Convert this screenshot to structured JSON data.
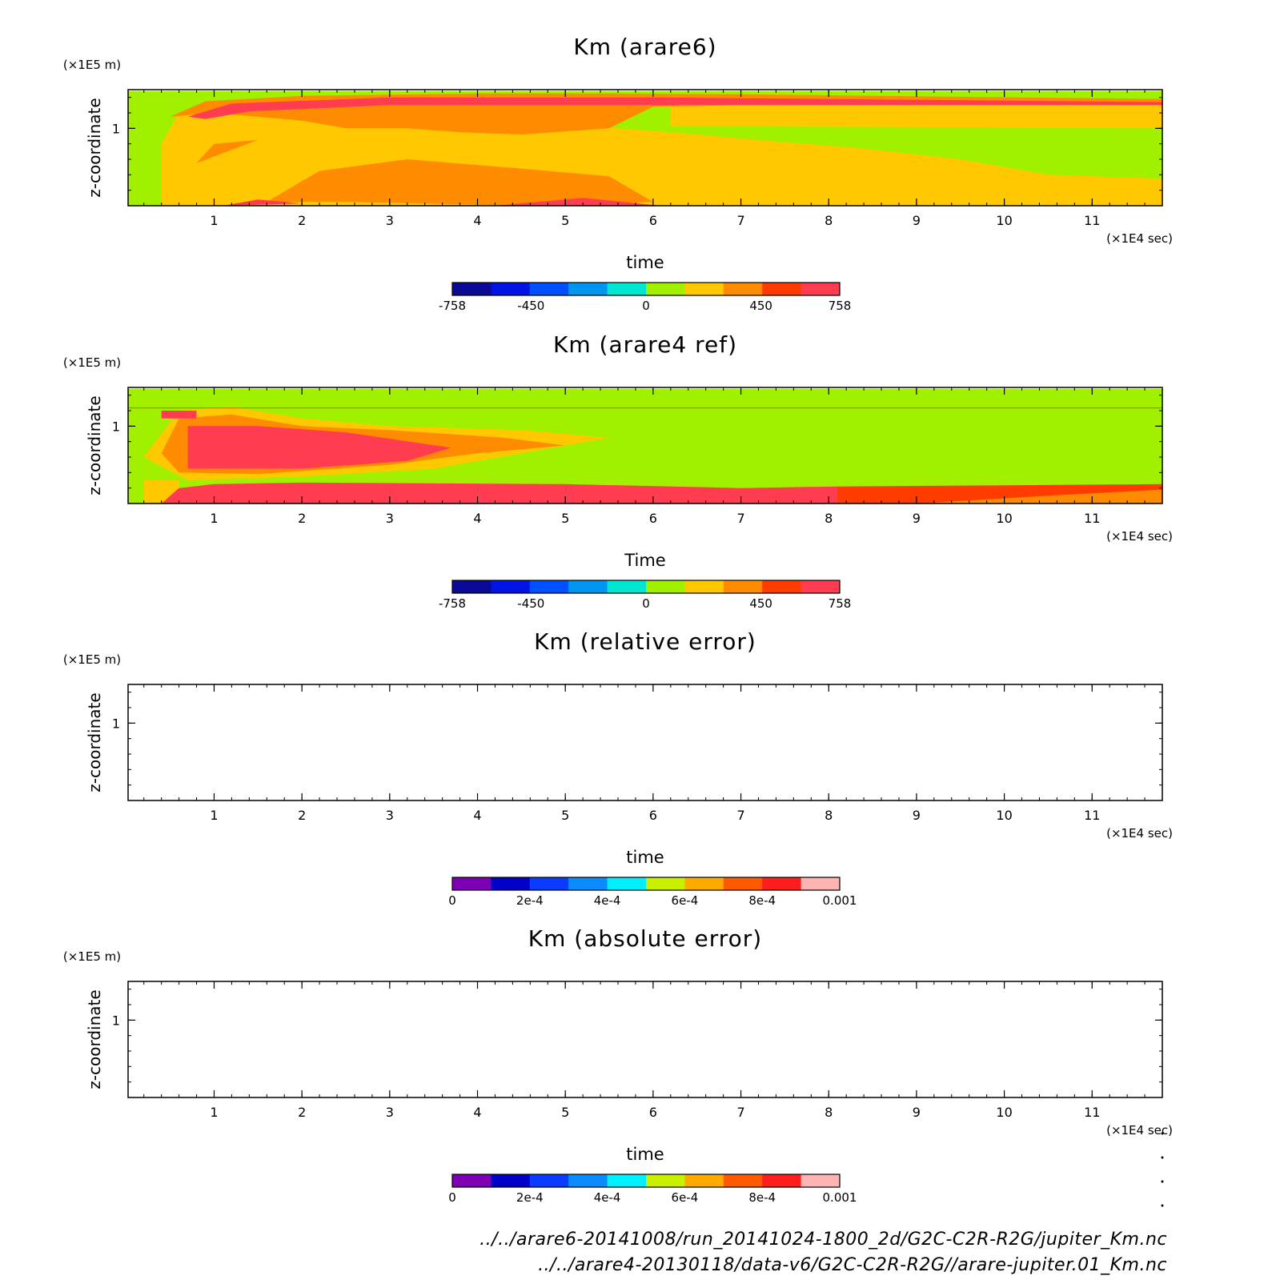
{
  "colorbars": {
    "km": {
      "colors": [
        "#0a0a96",
        "#0014e6",
        "#0050ff",
        "#0096f0",
        "#00e6d2",
        "#a0f000",
        "#ffc800",
        "#ff8c00",
        "#ff3c00",
        "#ff3c50"
      ],
      "labels": [
        "-758",
        "-450",
        "0",
        "450",
        "758"
      ],
      "label_values": [
        -758,
        -450,
        0,
        450,
        758
      ],
      "range": [
        -758,
        758
      ]
    },
    "err": {
      "colors": [
        "#7d00b4",
        "#0000c8",
        "#0a3cff",
        "#0a8cff",
        "#00f0ff",
        "#c8f000",
        "#ffaa00",
        "#ff5a00",
        "#ff1e1e",
        "#ffb4b4"
      ],
      "labels": [
        "0",
        "2e-4",
        "4e-4",
        "6e-4",
        "8e-4",
        "0.001"
      ],
      "label_values": [
        0,
        0.0002,
        0.0004,
        0.0006,
        0.0008,
        0.001
      ],
      "range": [
        0,
        0.001
      ]
    }
  },
  "chart_data": [
    {
      "type": "heatmap",
      "title": "Km (arare6)",
      "xlabel": "time",
      "ylabel": "z-coordinate",
      "x_unit": "(×1E4 sec)",
      "y_unit": "(×1E5 m)",
      "xlim": [
        0.02,
        11.8
      ],
      "ylim": [
        0,
        1.5
      ],
      "x_ticks": [
        1,
        2,
        3,
        4,
        5,
        6,
        7,
        8,
        9,
        10,
        11
      ],
      "y_ticks": [
        1
      ],
      "colorbar": "km",
      "regions": [
        {
          "value": 120,
          "polygon": [
            [
              0.02,
              0
            ],
            [
              11.8,
              0
            ],
            [
              11.8,
              1.48
            ],
            [
              0.02,
              1.48
            ]
          ]
        },
        {
          "value": 260,
          "polygon": [
            [
              0.4,
              0
            ],
            [
              11.8,
              0
            ],
            [
              11.8,
              0.35
            ],
            [
              10.5,
              0.4
            ],
            [
              9.5,
              0.6
            ],
            [
              8.3,
              0.75
            ],
            [
              7.5,
              0.82
            ],
            [
              6.2,
              0.95
            ],
            [
              5.0,
              1.05
            ],
            [
              3.0,
              1.15
            ],
            [
              1.0,
              1.3
            ],
            [
              0.6,
              1.2
            ],
            [
              0.4,
              0.8
            ]
          ]
        },
        {
          "value": 260,
          "polygon": [
            [
              6.2,
              1.03
            ],
            [
              11.8,
              1.0
            ],
            [
              11.8,
              1.38
            ],
            [
              6.2,
              1.33
            ]
          ]
        },
        {
          "value": 420,
          "polygon": [
            [
              0.5,
              1.15
            ],
            [
              0.9,
              1.35
            ],
            [
              2.0,
              1.42
            ],
            [
              4.0,
              1.45
            ],
            [
              5.5,
              1.45
            ],
            [
              7.0,
              1.44
            ],
            [
              11.8,
              1.38
            ],
            [
              11.8,
              1.32
            ],
            [
              7.0,
              1.3
            ],
            [
              6.0,
              1.28
            ],
            [
              5.5,
              1.0
            ],
            [
              4.5,
              0.92
            ],
            [
              3.8,
              0.95
            ],
            [
              3.2,
              1.0
            ],
            [
              2.5,
              1.0
            ],
            [
              2.0,
              1.1
            ],
            [
              1.0,
              1.2
            ]
          ]
        },
        {
          "value": 420,
          "polygon": [
            [
              0.8,
              0.55
            ],
            [
              1.5,
              0.85
            ],
            [
              1.0,
              0.8
            ]
          ]
        },
        {
          "value": 420,
          "polygon": [
            [
              1.6,
              0.05
            ],
            [
              2.2,
              0.45
            ],
            [
              3.2,
              0.6
            ],
            [
              4.5,
              0.48
            ],
            [
              5.5,
              0.38
            ],
            [
              6.0,
              0.05
            ],
            [
              4.5,
              0.0
            ],
            [
              2.5,
              0.05
            ]
          ]
        },
        {
          "value": 620,
          "polygon": [
            [
              0.7,
              1.15
            ],
            [
              1.2,
              1.32
            ],
            [
              3.0,
              1.4
            ],
            [
              6.0,
              1.4
            ],
            [
              11.8,
              1.34
            ],
            [
              11.8,
              1.3
            ],
            [
              6.0,
              1.3
            ],
            [
              3.0,
              1.3
            ],
            [
              1.4,
              1.22
            ],
            [
              0.9,
              1.12
            ]
          ]
        },
        {
          "value": 620,
          "polygon": [
            [
              1.1,
              0.0
            ],
            [
              1.5,
              0.08
            ],
            [
              2.0,
              0.03
            ]
          ]
        },
        {
          "value": 620,
          "polygon": [
            [
              4.2,
              0.0
            ],
            [
              5.2,
              0.1
            ],
            [
              6.1,
              0.0
            ]
          ]
        }
      ]
    },
    {
      "type": "heatmap",
      "title": "Km (arare4 ref)",
      "xlabel": "Time",
      "ylabel": "z-coordinate",
      "x_unit": "(×1E4 sec)",
      "y_unit": "(×1E5 m)",
      "xlim": [
        0.02,
        11.8
      ],
      "ylim": [
        0,
        1.5
      ],
      "x_ticks": [
        1,
        2,
        3,
        4,
        5,
        6,
        7,
        8,
        9,
        10,
        11
      ],
      "y_ticks": [
        1
      ],
      "colorbar": "km",
      "regions": [
        {
          "value": 120,
          "polygon": [
            [
              0.02,
              0
            ],
            [
              11.8,
              0
            ],
            [
              11.8,
              1.48
            ],
            [
              0.02,
              1.48
            ]
          ]
        },
        {
          "value": 260,
          "polygon": [
            [
              0.2,
              0.6
            ],
            [
              0.6,
              1.2
            ],
            [
              1.2,
              1.25
            ],
            [
              2.0,
              1.1
            ],
            [
              3.0,
              1.0
            ],
            [
              4.5,
              0.95
            ],
            [
              5.5,
              0.85
            ],
            [
              4.5,
              0.65
            ],
            [
              3.5,
              0.45
            ],
            [
              2.0,
              0.35
            ],
            [
              0.7,
              0.3
            ]
          ]
        },
        {
          "value": 260,
          "polygon": [
            [
              0.2,
              0.0
            ],
            [
              0.2,
              0.3
            ],
            [
              0.6,
              0.3
            ],
            [
              0.6,
              0.0
            ]
          ]
        },
        {
          "value": 420,
          "polygon": [
            [
              0.4,
              0.65
            ],
            [
              0.6,
              1.1
            ],
            [
              1.2,
              1.15
            ],
            [
              2.0,
              1.0
            ],
            [
              3.0,
              0.95
            ],
            [
              4.3,
              0.85
            ],
            [
              5.0,
              0.75
            ],
            [
              4.0,
              0.65
            ],
            [
              3.0,
              0.5
            ],
            [
              1.5,
              0.38
            ],
            [
              0.6,
              0.4
            ]
          ]
        },
        {
          "value": 640,
          "polygon": [
            [
              0.7,
              0.45
            ],
            [
              0.7,
              1.0
            ],
            [
              1.5,
              1.0
            ],
            [
              2.5,
              0.92
            ],
            [
              3.7,
              0.72
            ],
            [
              3.2,
              0.55
            ],
            [
              2.0,
              0.45
            ]
          ]
        },
        {
          "value": 640,
          "polygon": [
            [
              0.4,
              1.1
            ],
            [
              0.4,
              1.2
            ],
            [
              0.8,
              1.2
            ],
            [
              0.8,
              1.1
            ]
          ]
        },
        {
          "value": 640,
          "polygon": [
            [
              0.4,
              0.0
            ],
            [
              0.6,
              0.2
            ],
            [
              1.0,
              0.25
            ],
            [
              2.0,
              0.27
            ],
            [
              5.0,
              0.25
            ],
            [
              7.0,
              0.2
            ],
            [
              8.1,
              0.22
            ],
            [
              8.2,
              0.0
            ]
          ]
        },
        {
          "value": 560,
          "polygon": [
            [
              8.1,
              0.22
            ],
            [
              11.8,
              0.25
            ],
            [
              11.8,
              0.0
            ],
            [
              8.1,
              0.0
            ]
          ]
        },
        {
          "value": 420,
          "polygon": [
            [
              9.0,
              0.0
            ],
            [
              10.5,
              0.1
            ],
            [
              11.8,
              0.18
            ],
            [
              11.8,
              0.0
            ]
          ]
        },
        {
          "value": 800,
          "polygon": [
            [
              0.9,
              0.0
            ],
            [
              1.0,
              0.12
            ],
            [
              2.5,
              0.15
            ],
            [
              4.0,
              0.1
            ],
            [
              5.0,
              0.08
            ],
            [
              5.0,
              0.0
            ]
          ]
        },
        {
          "value": 640,
          "polygon": [
            [
              0.02,
              1.23
            ],
            [
              11.8,
              1.23
            ],
            [
              11.8,
              1.24
            ],
            [
              0.02,
              1.24
            ]
          ]
        }
      ]
    },
    {
      "type": "heatmap",
      "title": "Km (relative error)",
      "xlabel": "time",
      "ylabel": "z-coordinate",
      "x_unit": "(×1E4 sec)",
      "y_unit": "(×1E5 m)",
      "xlim": [
        0.02,
        11.8
      ],
      "ylim": [
        0,
        1.5
      ],
      "x_ticks": [
        1,
        2,
        3,
        4,
        5,
        6,
        7,
        8,
        9,
        10,
        11
      ],
      "y_ticks": [
        1
      ],
      "colorbar": "err",
      "regions": []
    },
    {
      "type": "heatmap",
      "title": "Km (absolute error)",
      "xlabel": "time",
      "ylabel": "z-coordinate",
      "x_unit": "(×1E4 sec)",
      "y_unit": "(×1E5 m)",
      "xlim": [
        0.02,
        11.8
      ],
      "ylim": [
        0,
        1.5
      ],
      "x_ticks": [
        1,
        2,
        3,
        4,
        5,
        6,
        7,
        8,
        9,
        10,
        11
      ],
      "y_ticks": [
        1
      ],
      "colorbar": "err",
      "regions": []
    }
  ],
  "footer": {
    "line1": "../../arare6-20141008/run_20141024-1800_2d/G2C-C2R-R2G/jupiter_Km.nc",
    "line2": "../../arare4-20130118/data-v6/G2C-C2R-R2G//arare-jupiter.01_Km.nc"
  }
}
